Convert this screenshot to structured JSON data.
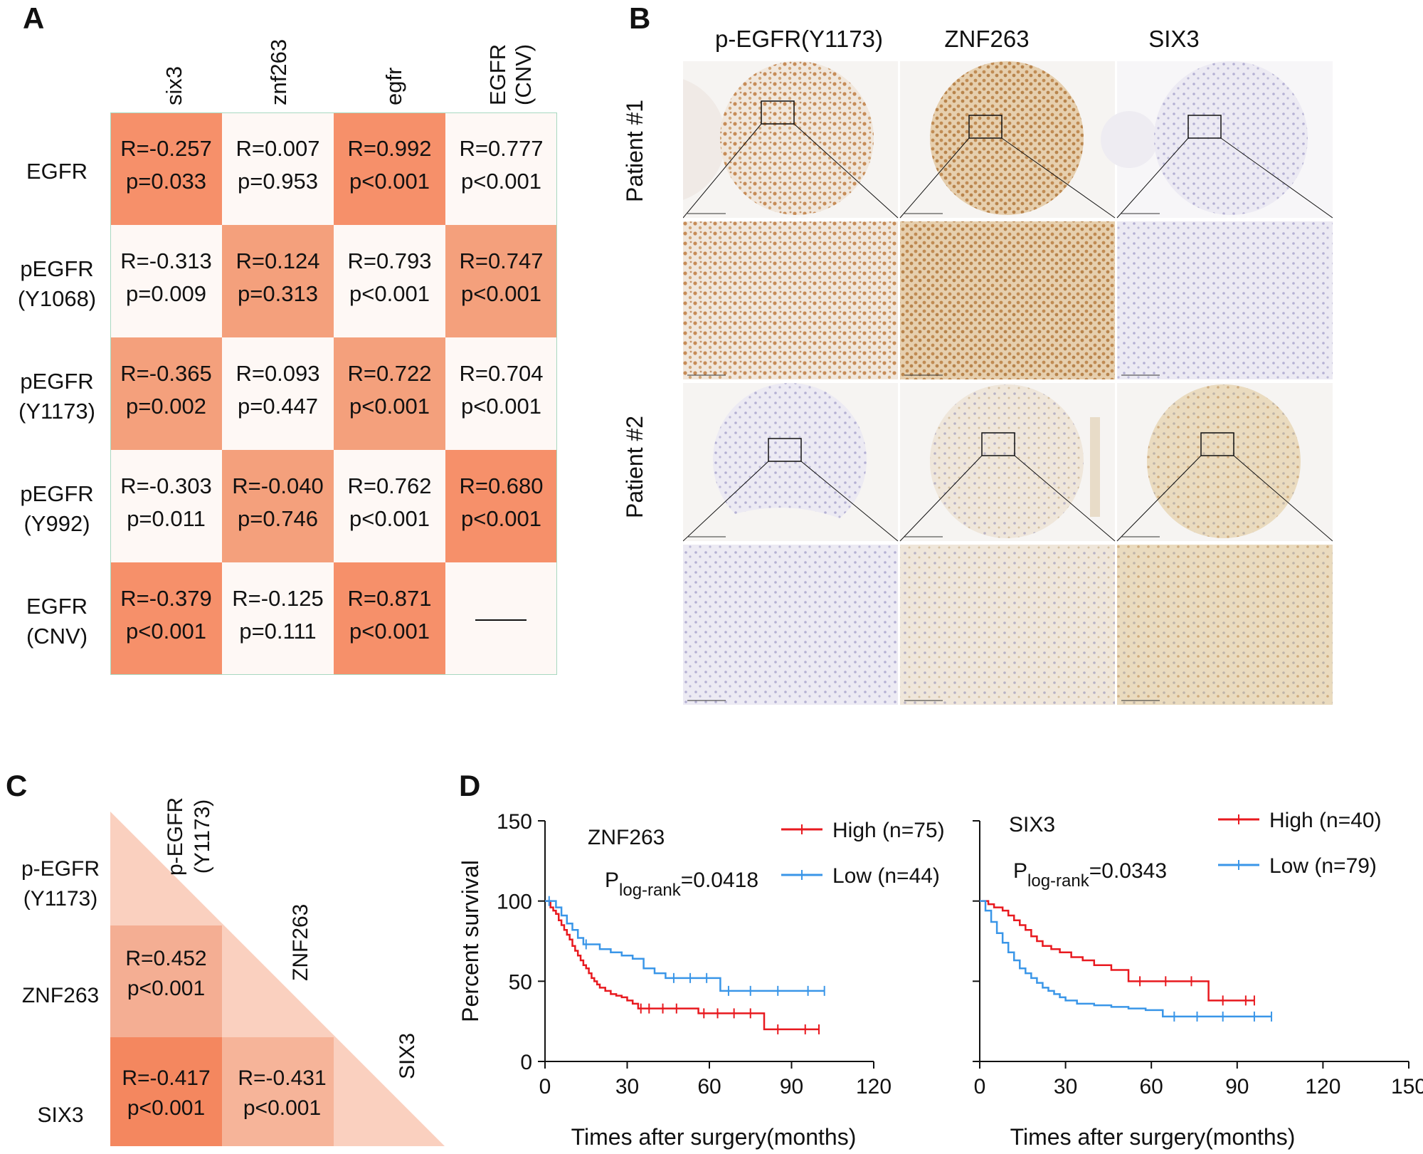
{
  "panel_a": {
    "letter": "A",
    "columns": [
      "six3",
      "znf263",
      "egfr",
      "EGFR\n(CNV)"
    ],
    "rows": [
      {
        "label": "EGFR",
        "cells": [
          {
            "r": "R=-0.257",
            "p": "p=0.033"
          },
          {
            "r": "R=0.007",
            "p": "p=0.953"
          },
          {
            "r": "R=0.992",
            "p": "p<0.001"
          },
          {
            "r": "R=0.777",
            "p": "p<0.001"
          }
        ]
      },
      {
        "label": "pEGFR\n(Y1068)",
        "cells": [
          {
            "r": "R=-0.313",
            "p": "p=0.009"
          },
          {
            "r": "R=0.124",
            "p": "p=0.313"
          },
          {
            "r": "R=0.793",
            "p": "p<0.001"
          },
          {
            "r": "R=0.747",
            "p": "p<0.001"
          }
        ]
      },
      {
        "label": "pEGFR\n(Y1173)",
        "cells": [
          {
            "r": "R=-0.365",
            "p": "p=0.002"
          },
          {
            "r": "R=0.093",
            "p": "p=0.447"
          },
          {
            "r": "R=0.722",
            "p": "p<0.001"
          },
          {
            "r": "R=0.704",
            "p": "p<0.001"
          }
        ]
      },
      {
        "label": "pEGFR\n(Y992)",
        "cells": [
          {
            "r": "R=-0.303",
            "p": "p=0.011"
          },
          {
            "r": "R=-0.040",
            "p": "p=0.746"
          },
          {
            "r": "R=0.762",
            "p": "p<0.001"
          },
          {
            "r": "R=0.680",
            "p": "p<0.001"
          }
        ]
      },
      {
        "label": "EGFR\n(CNV)",
        "cells": [
          {
            "r": "R=-0.379",
            "p": "p<0.001"
          },
          {
            "r": "R=-0.125",
            "p": "p=0.111"
          },
          {
            "r": "R=0.871",
            "p": "p<0.001"
          },
          {
            "r": "",
            "p": ""
          }
        ]
      }
    ],
    "colors": {
      "strong": "#f6906a",
      "medium": "#f4a07c",
      "pale": "#fef8f5"
    }
  },
  "panel_b": {
    "letter": "B",
    "stains": [
      "p-EGFR(Y1173)",
      "ZNF263",
      "SIX3"
    ],
    "patients": [
      "Patient #1",
      "Patient #2"
    ]
  },
  "panel_c": {
    "letter": "C",
    "col_labels": [
      "p-EGFR\n(Y1173)",
      "ZNF263",
      "SIX3"
    ],
    "row_labels": [
      "p-EGFR\n(Y1173)",
      "ZNF263",
      "SIX3"
    ],
    "cells": [
      {
        "r": "R=0.452",
        "p": "p<0.001"
      },
      {
        "r": "R=-0.417",
        "p": "p<0.001"
      },
      {
        "r": "R=-0.431",
        "p": "p<0.001"
      }
    ]
  },
  "panel_d": {
    "letter": "D",
    "ylabel": "Percent survival",
    "xlabel": "Times after surgery(months)"
  },
  "chart_data": [
    {
      "type": "line",
      "title": "ZNF263",
      "pvalue_prefix": "P",
      "pvalue_sub": "log-rank",
      "pvalue_value": "=0.0418",
      "xlabel": "Times after surgery(months)",
      "ylabel": "Percent survival",
      "xlim": [
        0,
        120
      ],
      "ylim": [
        0,
        150
      ],
      "xticks": [
        0,
        30,
        60,
        90,
        120
      ],
      "yticks": [
        0,
        50,
        100,
        150
      ],
      "series": [
        {
          "name": "High (n=75)",
          "color": "#e8191f",
          "x": [
            0,
            2,
            3,
            4,
            5,
            6,
            7,
            8,
            9,
            10,
            11,
            12,
            13,
            14,
            15,
            16,
            17,
            18,
            19,
            20,
            22,
            24,
            26,
            28,
            30,
            32,
            34,
            36,
            40,
            46,
            50,
            56,
            60,
            66,
            72,
            78,
            80,
            90,
            100
          ],
          "y": [
            100,
            96,
            94,
            92,
            88,
            85,
            82,
            79,
            76,
            72,
            69,
            66,
            63,
            60,
            58,
            55,
            52,
            50,
            48,
            46,
            44,
            42,
            41,
            40,
            38,
            36,
            33,
            33,
            33,
            33,
            33,
            30,
            30,
            30,
            30,
            30,
            20,
            20,
            20
          ]
        },
        {
          "name": "Low (n=44)",
          "color": "#3a96e8",
          "x": [
            0,
            3,
            4,
            6,
            8,
            10,
            12,
            14,
            16,
            20,
            24,
            28,
            32,
            36,
            40,
            44,
            50,
            56,
            62,
            64,
            70,
            80,
            90,
            102
          ],
          "y": [
            100,
            100,
            96,
            91,
            86,
            82,
            77,
            73,
            73,
            70,
            68,
            66,
            64,
            58,
            55,
            52,
            52,
            52,
            52,
            44,
            44,
            44,
            44,
            44
          ]
        }
      ]
    },
    {
      "type": "line",
      "title": "SIX3",
      "pvalue_prefix": "P",
      "pvalue_sub": "log-rank",
      "pvalue_value": "=0.0343",
      "xlabel": "Times after surgery(months)",
      "ylabel": "Percent survival",
      "xlim": [
        0,
        150
      ],
      "ylim": [
        0,
        150
      ],
      "xticks": [
        0,
        30,
        60,
        90,
        120,
        150
      ],
      "yticks": [
        0,
        50,
        100,
        150
      ],
      "series": [
        {
          "name": "High (n=40)",
          "color": "#e8191f",
          "x": [
            0,
            3,
            5,
            8,
            10,
            12,
            14,
            16,
            18,
            20,
            22,
            25,
            28,
            32,
            36,
            40,
            46,
            52,
            60,
            70,
            78,
            80,
            90,
            96
          ],
          "y": [
            100,
            98,
            96,
            94,
            91,
            88,
            85,
            82,
            78,
            75,
            72,
            70,
            68,
            65,
            63,
            60,
            57,
            50,
            50,
            50,
            50,
            38,
            38,
            38
          ]
        },
        {
          "name": "Low (n=79)",
          "color": "#3a96e8",
          "x": [
            0,
            2,
            4,
            6,
            8,
            10,
            12,
            14,
            16,
            18,
            20,
            22,
            24,
            26,
            28,
            30,
            34,
            40,
            46,
            52,
            58,
            64,
            72,
            80,
            90,
            102
          ],
          "y": [
            100,
            94,
            87,
            80,
            74,
            68,
            63,
            58,
            55,
            52,
            49,
            46,
            44,
            42,
            40,
            38,
            36,
            35,
            34,
            33,
            32,
            28,
            28,
            28,
            28,
            28
          ]
        }
      ]
    }
  ]
}
